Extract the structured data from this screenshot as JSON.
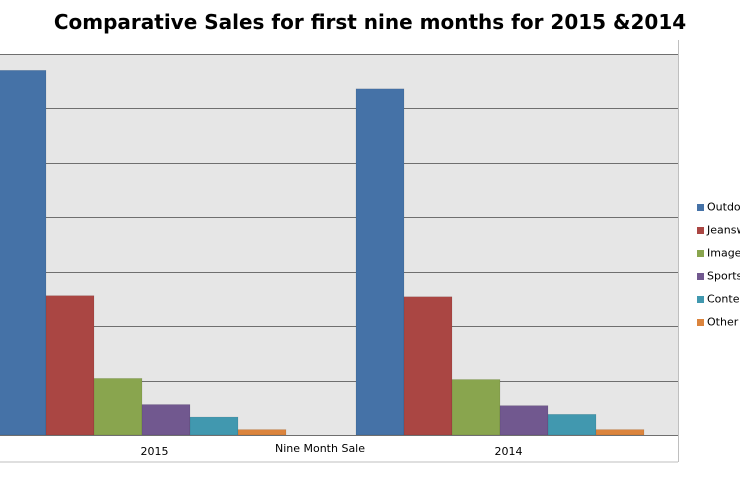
{
  "chart_data": {
    "type": "bar",
    "title": "Comparative Sales for first nine months for 2015 &2014",
    "xlabel": "Nine Month Sale",
    "ylabel": "",
    "categories": [
      "2015",
      "2014"
    ],
    "ylim": [
      0,
      3500
    ],
    "grid": true,
    "legend_position": "right",
    "series": [
      {
        "name": "Outdo",
        "color": "#4572A7",
        "values": [
          3350,
          3180
        ]
      },
      {
        "name": "Jeansw",
        "color": "#AA4643",
        "values": [
          1280,
          1270
        ]
      },
      {
        "name": "Image",
        "color": "#89A54E",
        "values": [
          520,
          510
        ]
      },
      {
        "name": "Sports",
        "color": "#71588F",
        "values": [
          280,
          270
        ]
      },
      {
        "name": "Conte",
        "color": "#4198AF",
        "values": [
          165,
          190
        ]
      },
      {
        "name": "Other",
        "color": "#DB843D",
        "values": [
          50,
          50
        ]
      }
    ]
  }
}
